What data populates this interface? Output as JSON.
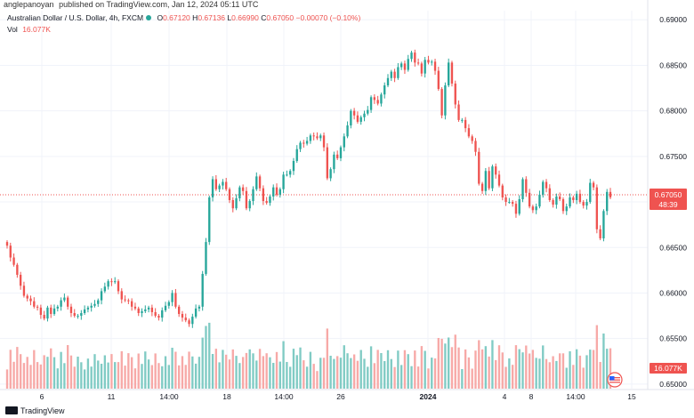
{
  "header": {
    "author": "anglepanoyan",
    "published_text": "published on TradingView.com, Jan 12, 2024 05:11 UTC"
  },
  "legend": {
    "symbol": "Australian Dollar / U.S. Dollar, 4h, FXCM",
    "open_label": "O",
    "open": "0.67120",
    "high_label": "H",
    "high": "0.67136",
    "low_label": "L",
    "low": "0.66990",
    "close_label": "C",
    "close": "0.67050",
    "change": "−0.00070 (−0.10%)",
    "vol_label": "Vol",
    "vol": "16.077K"
  },
  "footer": {
    "brand": "TradingView"
  },
  "colors": {
    "up": "#26a69a",
    "down": "#ef5350",
    "vol_up": "#80cbc4",
    "vol_down": "#f7a9a7",
    "grid": "#f0f3fa"
  },
  "chart_data": {
    "type": "candlestick",
    "ylim": [
      0.6495,
      0.691
    ],
    "y_ticks": [
      "0.69000",
      "0.68500",
      "0.68000",
      "0.67500",
      "0.67000",
      "0.66500",
      "0.66000",
      "0.65500",
      "0.65000"
    ],
    "x_ticks": [
      "6",
      "11",
      "14:00",
      "18",
      "14:00",
      "26",
      "2024",
      "4",
      "8",
      "14:00",
      "15"
    ],
    "last_price_label": "0.67050",
    "countdown_label": "48:39",
    "volume_label": "16.077K",
    "closes": [
      0.6652,
      0.6639,
      0.6631,
      0.662,
      0.6608,
      0.6597,
      0.6594,
      0.6591,
      0.6585,
      0.6584,
      0.6576,
      0.6572,
      0.6584,
      0.6577,
      0.6583,
      0.6585,
      0.6592,
      0.6595,
      0.6585,
      0.6578,
      0.6575,
      0.6575,
      0.6578,
      0.6582,
      0.6584,
      0.6586,
      0.6588,
      0.6592,
      0.6602,
      0.6607,
      0.6613,
      0.6612,
      0.6613,
      0.6602,
      0.6593,
      0.6592,
      0.6591,
      0.6585,
      0.6583,
      0.6578,
      0.658,
      0.6582,
      0.6584,
      0.6579,
      0.6575,
      0.6573,
      0.6581,
      0.6586,
      0.659,
      0.66,
      0.6585,
      0.6577,
      0.6573,
      0.657,
      0.6566,
      0.6574,
      0.6583,
      0.6585,
      0.6621,
      0.6656,
      0.6705,
      0.6725,
      0.6714,
      0.6718,
      0.6722,
      0.6714,
      0.6702,
      0.6693,
      0.6704,
      0.6716,
      0.6712,
      0.6693,
      0.6701,
      0.6714,
      0.6728,
      0.6715,
      0.6701,
      0.6699,
      0.6706,
      0.6716,
      0.6708,
      0.6714,
      0.673,
      0.673,
      0.6734,
      0.6745,
      0.6758,
      0.6765,
      0.6764,
      0.6767,
      0.6773,
      0.6772,
      0.677,
      0.6773,
      0.676,
      0.6726,
      0.6736,
      0.6752,
      0.6748,
      0.676,
      0.6772,
      0.6784,
      0.68,
      0.6795,
      0.6788,
      0.6793,
      0.6797,
      0.6801,
      0.6815,
      0.6812,
      0.6808,
      0.6818,
      0.6828,
      0.6836,
      0.6843,
      0.6836,
      0.6848,
      0.6852,
      0.6845,
      0.6857,
      0.6864,
      0.6853,
      0.6852,
      0.6841,
      0.6856,
      0.6853,
      0.6854,
      0.6844,
      0.6824,
      0.6795,
      0.6828,
      0.6853,
      0.683,
      0.6807,
      0.679,
      0.679,
      0.6781,
      0.6772,
      0.6767,
      0.6755,
      0.672,
      0.6712,
      0.6734,
      0.6715,
      0.6739,
      0.673,
      0.6718,
      0.6705,
      0.67,
      0.67,
      0.6698,
      0.6687,
      0.6703,
      0.6725,
      0.671,
      0.6695,
      0.6691,
      0.6695,
      0.6708,
      0.6722,
      0.6715,
      0.6702,
      0.6697,
      0.6706,
      0.6703,
      0.669,
      0.6695,
      0.6705,
      0.6702,
      0.6709,
      0.67,
      0.6696,
      0.67,
      0.6721,
      0.6716,
      0.667,
      0.666,
      0.669,
      0.6711,
      0.6705
    ]
  }
}
